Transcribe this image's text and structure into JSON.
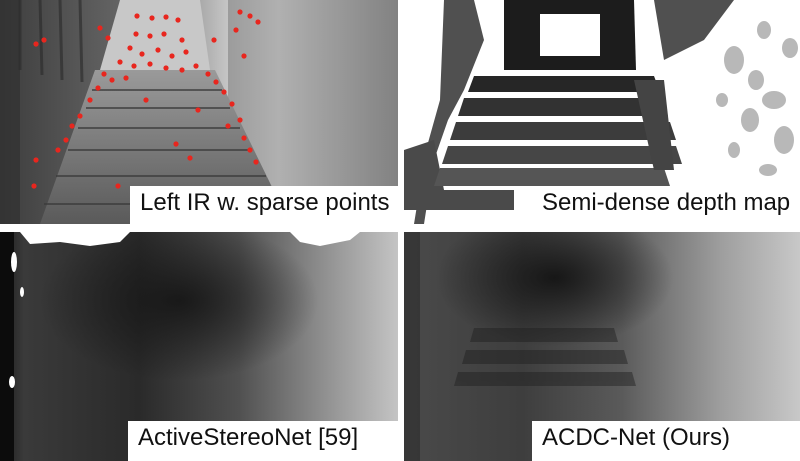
{
  "panels": [
    {
      "caption": "Left IR w. sparse points",
      "kind": "infrared image with sparse red points",
      "point_color": "#e8261e"
    },
    {
      "caption": "Semi-dense depth map",
      "kind": "semi-dense depth map"
    },
    {
      "caption": "ActiveStereoNet [59]",
      "kind": "dense depth prediction"
    },
    {
      "caption": "ACDC-Net (Ours)",
      "kind": "dense depth prediction"
    }
  ]
}
